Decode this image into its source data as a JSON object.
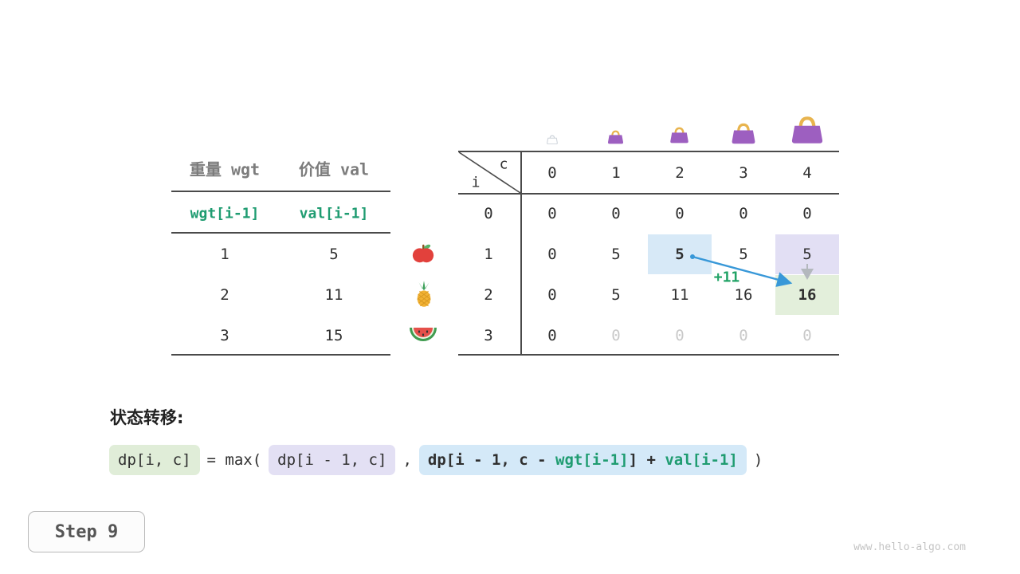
{
  "left_table": {
    "header_wgt": "重量 wgt",
    "header_val": "价值 val",
    "formula_wgt": "wgt[i-1]",
    "formula_val": "val[i-1]",
    "rows": [
      {
        "wgt": "1",
        "val": "5",
        "fruit": "apple"
      },
      {
        "wgt": "2",
        "val": "11",
        "fruit": "pineapple"
      },
      {
        "wgt": "3",
        "val": "15",
        "fruit": "watermelon"
      }
    ]
  },
  "dp_table": {
    "corner_col": "c",
    "corner_row": "i",
    "col_headers": [
      "0",
      "1",
      "2",
      "3",
      "4"
    ],
    "row_headers": [
      "0",
      "1",
      "2",
      "3"
    ],
    "cells": [
      [
        "0",
        "0",
        "0",
        "0",
        "0"
      ],
      [
        "0",
        "5",
        "5",
        "5",
        "5"
      ],
      [
        "0",
        "5",
        "11",
        "16",
        "16"
      ],
      [
        "0",
        "0",
        "0",
        "0",
        "0"
      ]
    ],
    "dimmed_rows": [
      3
    ],
    "dimmed_from_col": 1,
    "highlights": [
      {
        "row": 1,
        "col": 2,
        "style": "blue",
        "bold": true
      },
      {
        "row": 1,
        "col": 4,
        "style": "lavender",
        "bold": false
      },
      {
        "row": 2,
        "col": 4,
        "style": "green",
        "bold": true
      }
    ],
    "arrow_label": "+11"
  },
  "transition": {
    "title": "状态转移:",
    "box1": "dp[i, c]",
    "eq": "= max(",
    "box2": "dp[i - 1, c]",
    "comma": ",",
    "box3_parts": [
      {
        "text": "dp[i - 1, c - ",
        "color": "dark"
      },
      {
        "text": "wgt[i-1]",
        "color": "green"
      },
      {
        "text": "] + ",
        "color": "dark"
      },
      {
        "text": "val[i-1]",
        "color": "green"
      }
    ],
    "close": ")"
  },
  "step_label": "Step 9",
  "watermark": "www.hello-algo.com",
  "colors": {
    "green_text": "#1f9c71",
    "blue_highlight": "#d7e9f7",
    "lavender_highlight": "#e2dff4",
    "green_highlight": "#e3efdb",
    "arrow_blue": "#3898d8",
    "plus_label": "#21a366",
    "bag_purple": "#9d5fc0",
    "bag_handle": "#e8b44e"
  }
}
